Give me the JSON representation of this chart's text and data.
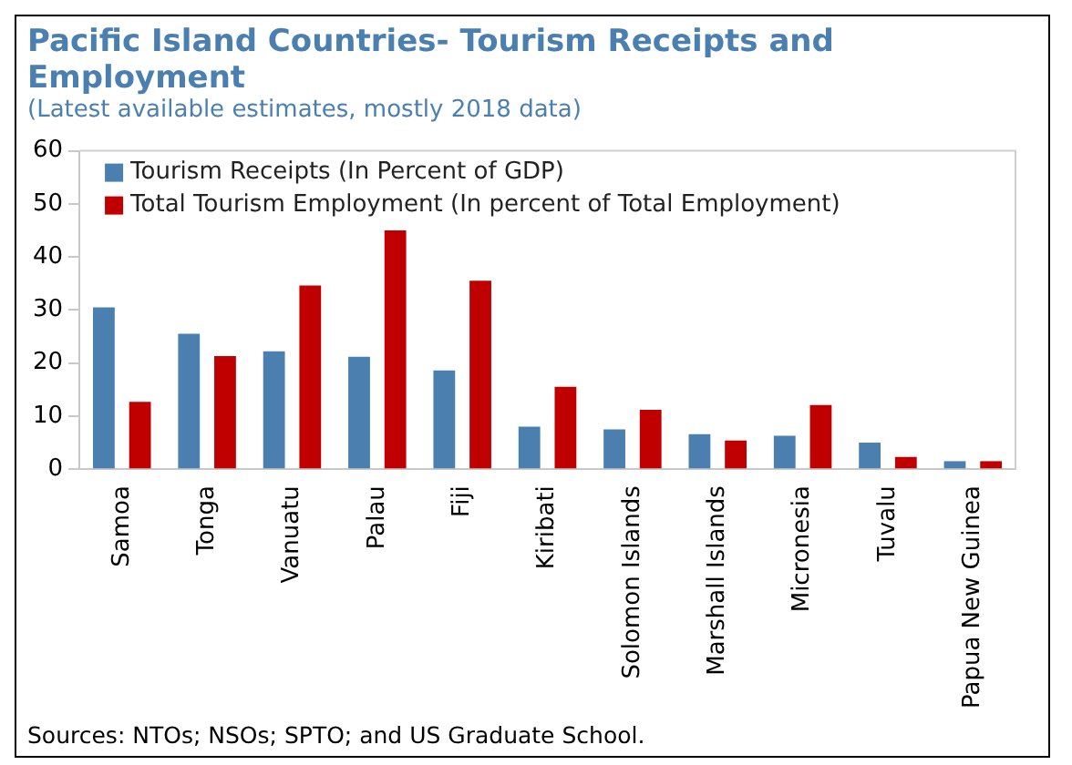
{
  "chart_data": {
    "type": "bar",
    "title": "Pacific Island Countries- Tourism Receipts and Employment",
    "subtitle": "(Latest available estimates, mostly 2018 data)",
    "categories": [
      "Samoa",
      "Tonga",
      "Vanuatu",
      "Palau",
      "Fiji",
      "Kiribati",
      "Solomon Islands",
      "Marshall Islands",
      "Micronesia",
      "Tuvalu",
      "Papua New Guinea"
    ],
    "series": [
      {
        "name": "Tourism Receipts (In Percent of GDP)",
        "color": "#4a7fb0",
        "values": [
          30.5,
          25.5,
          22.2,
          21.2,
          18.6,
          8,
          7.5,
          6.6,
          6.3,
          5,
          1.5
        ]
      },
      {
        "name": "Total Tourism Employment (In percent of Total Employment)",
        "color": "#c00000",
        "values": [
          12.7,
          21.3,
          34.6,
          45,
          35.5,
          15.5,
          11.2,
          5.4,
          12.1,
          2.3,
          1.5
        ]
      }
    ],
    "ylim": [
      0,
      60
    ],
    "yticks": [
      0,
      10,
      20,
      30,
      40,
      50,
      60
    ],
    "grid": false,
    "legend": "top left",
    "annotations": [
      "Sources: NTOs; NSOs;  SPTO; and US Graduate School."
    ]
  }
}
